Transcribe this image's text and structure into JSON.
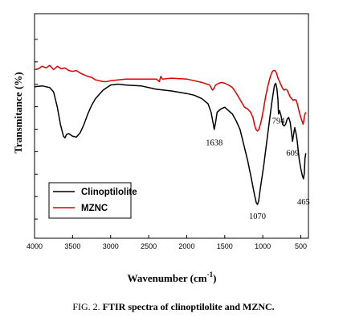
{
  "chart_data": {
    "type": "line",
    "xlabel": "Wavenumber (cm-1)",
    "xlabel_main": "Wavenumber (cm",
    "xlabel_sup": "-1",
    "xlabel_end": ")",
    "ylabel": "Transmitance (%)",
    "xlim": [
      4000,
      400
    ],
    "x_reversed": true,
    "y_ticks_labeled": false,
    "x_ticks": [
      "4000",
      "3500",
      "3000",
      "2500",
      "2000",
      "1500",
      "1000",
      "500"
    ],
    "x_tick_values": [
      4000,
      3500,
      3000,
      2500,
      2000,
      1500,
      1000,
      500
    ],
    "legend_position": "bottom-left",
    "annotations": [
      {
        "text": "1638",
        "x": 1638
      },
      {
        "text": "794",
        "x": 794
      },
      {
        "text": "609",
        "x": 609
      },
      {
        "text": "1070",
        "x": 1070
      },
      {
        "text": "465",
        "x": 465
      }
    ],
    "series": [
      {
        "name": "Clinoptilolite",
        "color": "#000000",
        "points": [
          [
            4000,
            69
          ],
          [
            3900,
            69.5
          ],
          [
            3800,
            68.5
          ],
          [
            3750,
            66
          ],
          [
            3700,
            57
          ],
          [
            3660,
            47
          ],
          [
            3620,
            40
          ],
          [
            3600,
            39
          ],
          [
            3580,
            41
          ],
          [
            3550,
            41.5
          ],
          [
            3500,
            40
          ],
          [
            3450,
            39.5
          ],
          [
            3400,
            42
          ],
          [
            3350,
            47
          ],
          [
            3300,
            53
          ],
          [
            3250,
            58
          ],
          [
            3200,
            62
          ],
          [
            3100,
            67
          ],
          [
            3000,
            70
          ],
          [
            2900,
            70.5
          ],
          [
            2800,
            70
          ],
          [
            2600,
            69.5
          ],
          [
            2400,
            67.5
          ],
          [
            2200,
            66.5
          ],
          [
            2000,
            65
          ],
          [
            1900,
            64
          ],
          [
            1800,
            62
          ],
          [
            1720,
            59
          ],
          [
            1680,
            54
          ],
          [
            1650,
            47
          ],
          [
            1638,
            44
          ],
          [
            1620,
            48
          ],
          [
            1600,
            54
          ],
          [
            1550,
            56
          ],
          [
            1500,
            57
          ],
          [
            1450,
            55
          ],
          [
            1400,
            53
          ],
          [
            1350,
            49
          ],
          [
            1300,
            44
          ],
          [
            1250,
            35
          ],
          [
            1200,
            26
          ],
          [
            1150,
            15
          ],
          [
            1110,
            6
          ],
          [
            1085,
            1
          ],
          [
            1070,
            0
          ],
          [
            1055,
            2
          ],
          [
            1030,
            10
          ],
          [
            990,
            22
          ],
          [
            950,
            36
          ],
          [
            910,
            50
          ],
          [
            880,
            60
          ],
          [
            860,
            66
          ],
          [
            845,
            70
          ],
          [
            830,
            71
          ],
          [
            815,
            68
          ],
          [
            800,
            61
          ],
          [
            794,
            53
          ],
          [
            780,
            55
          ],
          [
            760,
            52
          ],
          [
            740,
            47
          ],
          [
            720,
            46
          ],
          [
            700,
            47
          ],
          [
            680,
            50
          ],
          [
            660,
            51
          ],
          [
            640,
            48
          ],
          [
            620,
            41
          ],
          [
            609,
            37
          ],
          [
            595,
            41
          ],
          [
            580,
            45
          ],
          [
            565,
            42
          ],
          [
            550,
            38
          ],
          [
            520,
            26
          ],
          [
            500,
            21
          ],
          [
            480,
            17
          ],
          [
            465,
            15
          ],
          [
            455,
            18
          ],
          [
            445,
            27
          ],
          [
            435,
            30
          ]
        ]
      },
      {
        "name": "MZNC",
        "color": "#e00000",
        "points": [
          [
            4000,
            79
          ],
          [
            3950,
            79.5
          ],
          [
            3900,
            81
          ],
          [
            3850,
            80
          ],
          [
            3800,
            81.5
          ],
          [
            3750,
            79
          ],
          [
            3700,
            81
          ],
          [
            3650,
            79.5
          ],
          [
            3600,
            80
          ],
          [
            3550,
            78.5
          ],
          [
            3500,
            78
          ],
          [
            3450,
            78.5
          ],
          [
            3400,
            77
          ],
          [
            3350,
            76
          ],
          [
            3300,
            75
          ],
          [
            3250,
            74.5
          ],
          [
            3200,
            73
          ],
          [
            3150,
            72.5
          ],
          [
            3100,
            72
          ],
          [
            3050,
            72
          ],
          [
            3000,
            72.5
          ],
          [
            2900,
            73
          ],
          [
            2800,
            73.5
          ],
          [
            2700,
            73.5
          ],
          [
            2600,
            73.5
          ],
          [
            2500,
            73.5
          ],
          [
            2400,
            73.5
          ],
          [
            2360,
            72
          ],
          [
            2340,
            75
          ],
          [
            2320,
            73.5
          ],
          [
            2200,
            74
          ],
          [
            2000,
            73.5
          ],
          [
            1900,
            72.5
          ],
          [
            1800,
            71.5
          ],
          [
            1700,
            70
          ],
          [
            1660,
            67
          ],
          [
            1640,
            68
          ],
          [
            1620,
            70
          ],
          [
            1580,
            71
          ],
          [
            1540,
            71.5
          ],
          [
            1500,
            71
          ],
          [
            1450,
            70
          ],
          [
            1400,
            68.5
          ],
          [
            1360,
            66
          ],
          [
            1320,
            63
          ],
          [
            1280,
            60
          ],
          [
            1240,
            57
          ],
          [
            1200,
            56
          ],
          [
            1160,
            54
          ],
          [
            1130,
            51
          ],
          [
            1110,
            47
          ],
          [
            1090,
            44
          ],
          [
            1070,
            43
          ],
          [
            1050,
            44
          ],
          [
            1020,
            49
          ],
          [
            990,
            56
          ],
          [
            960,
            64
          ],
          [
            930,
            70
          ],
          [
            900,
            75
          ],
          [
            880,
            77.5
          ],
          [
            860,
            78.5
          ],
          [
            840,
            78.5
          ],
          [
            820,
            77
          ],
          [
            800,
            74
          ],
          [
            780,
            72
          ],
          [
            760,
            70
          ],
          [
            740,
            68
          ],
          [
            720,
            67
          ],
          [
            700,
            67.5
          ],
          [
            680,
            67
          ],
          [
            660,
            65
          ],
          [
            640,
            63
          ],
          [
            620,
            62
          ],
          [
            600,
            61
          ],
          [
            580,
            61.5
          ],
          [
            560,
            61
          ],
          [
            540,
            58
          ],
          [
            520,
            54
          ],
          [
            500,
            51
          ],
          [
            485,
            49
          ],
          [
            470,
            47
          ],
          [
            455,
            51
          ],
          [
            445,
            53
          ],
          [
            435,
            54
          ]
        ]
      }
    ]
  },
  "caption": {
    "prefix": "FIG. 2. ",
    "text": "FTIR spectra of clinoptilolite and MZNC."
  }
}
